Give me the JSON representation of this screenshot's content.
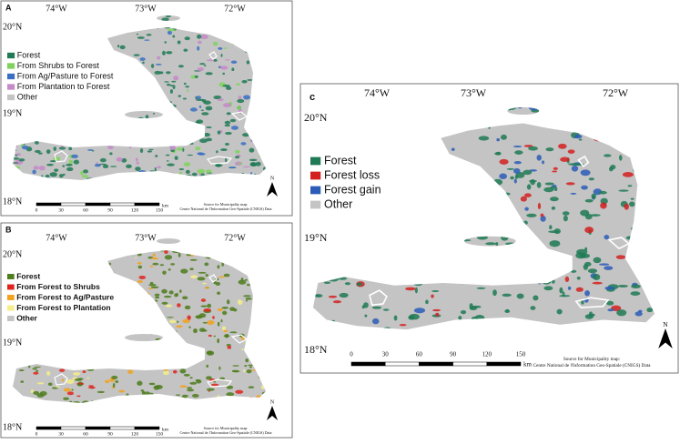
{
  "panels": [
    {
      "label": "A",
      "lon_labels": [
        "74°W",
        "73°W",
        "72°W"
      ],
      "lat_labels": [
        "20°N",
        "19°N",
        "18°N"
      ],
      "legend": [
        {
          "name": "Forest",
          "color": "#1f7a55"
        },
        {
          "name": "From Shrubs to Forest",
          "color": "#7fd35a"
        },
        {
          "name": "From Ag/Pasture to Forest",
          "color": "#3a6fc4"
        },
        {
          "name": "From Plantation to Forest",
          "color": "#c58ac8"
        },
        {
          "name": "Other",
          "color": "#c4c4c4"
        }
      ],
      "scale": [
        "0",
        "30",
        "60",
        "90",
        "120",
        "150"
      ],
      "scale_unit": "km",
      "source": [
        "Source for Municipality map:",
        "Centre National de l'Information Geo-Spatiale (CNIGS) Data"
      ],
      "north": "N"
    },
    {
      "label": "B",
      "lon_labels": [
        "74°W",
        "73°W",
        "72°W"
      ],
      "lat_labels": [
        "20°N",
        "19°N",
        "18°N"
      ],
      "legend": [
        {
          "name": "Forest",
          "color": "#4e7d1c"
        },
        {
          "name": "From Forest to Shrubs",
          "color": "#e0231c"
        },
        {
          "name": "From Forest to Ag/Pasture",
          "color": "#f2a21c"
        },
        {
          "name": "From Forest to Plantation",
          "color": "#f7ee8a"
        },
        {
          "name": "Other",
          "color": "#c4c4c4"
        }
      ],
      "scale": [
        "0",
        "30",
        "60",
        "90",
        "120",
        "150"
      ],
      "scale_unit": "km",
      "source": [
        "Source for Municipality map:",
        "Centre National de l'Information Geo-Spatiale (CNIGS) Data"
      ],
      "north": "N"
    },
    {
      "label": "c",
      "lon_labels": [
        "74°W",
        "73°W",
        "72°W"
      ],
      "lat_labels": [
        "20°N",
        "19°N",
        "18°N"
      ],
      "legend": [
        {
          "name": "Forest",
          "color": "#1f7a55"
        },
        {
          "name": "Forest loss",
          "color": "#d42020"
        },
        {
          "name": "Forest gain",
          "color": "#2b5db8"
        },
        {
          "name": "Other",
          "color": "#c4c4c4"
        }
      ],
      "scale": [
        "0",
        "30",
        "60",
        "90",
        "120",
        "150"
      ],
      "scale_unit": "km",
      "source": [
        "Source for Municipality map:",
        "Centre National de l'Information Geo-Spatiale (CNIGS) Data"
      ],
      "north": "N"
    }
  ]
}
